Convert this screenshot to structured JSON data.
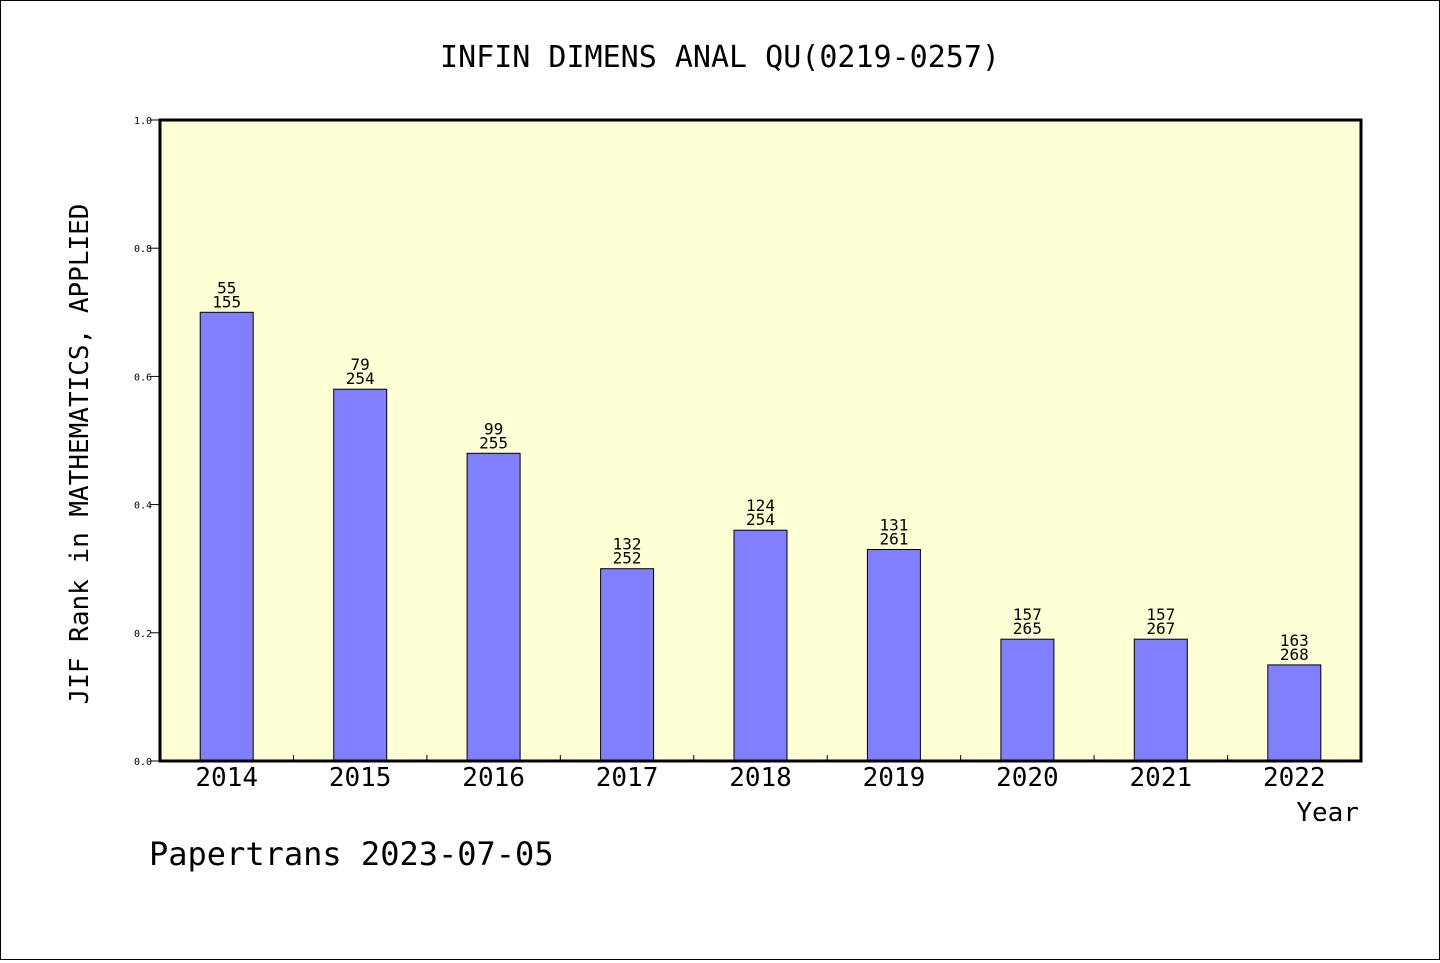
{
  "chart_data": {
    "type": "bar",
    "title": "INFIN DIMENS ANAL QU(0219-0257)",
    "xlabel": "Year",
    "ylabel": "JIF Rank in MATHEMATICS, APPLIED",
    "ylim": [
      0,
      1.0
    ],
    "yticks": [
      "0.0",
      "0.2",
      "0.4",
      "0.6",
      "0.8",
      "1.0"
    ],
    "categories": [
      "2014",
      "2015",
      "2016",
      "2017",
      "2018",
      "2019",
      "2020",
      "2021",
      "2022"
    ],
    "values": [
      0.7,
      0.58,
      0.48,
      0.3,
      0.36,
      0.33,
      0.19,
      0.19,
      0.15
    ],
    "rank": [
      "55",
      "79",
      "99",
      "132",
      "124",
      "131",
      "157",
      "157",
      "163"
    ],
    "total": [
      "155",
      "254",
      "255",
      "252",
      "254",
      "261",
      "265",
      "267",
      "268"
    ],
    "grid": false,
    "colors": {
      "plot_background": "#ffffd5",
      "bar_fill": "#8080ff",
      "bar_stroke": "#000000"
    }
  },
  "footer": {
    "credit": "Papertrans 2023-07-05"
  }
}
